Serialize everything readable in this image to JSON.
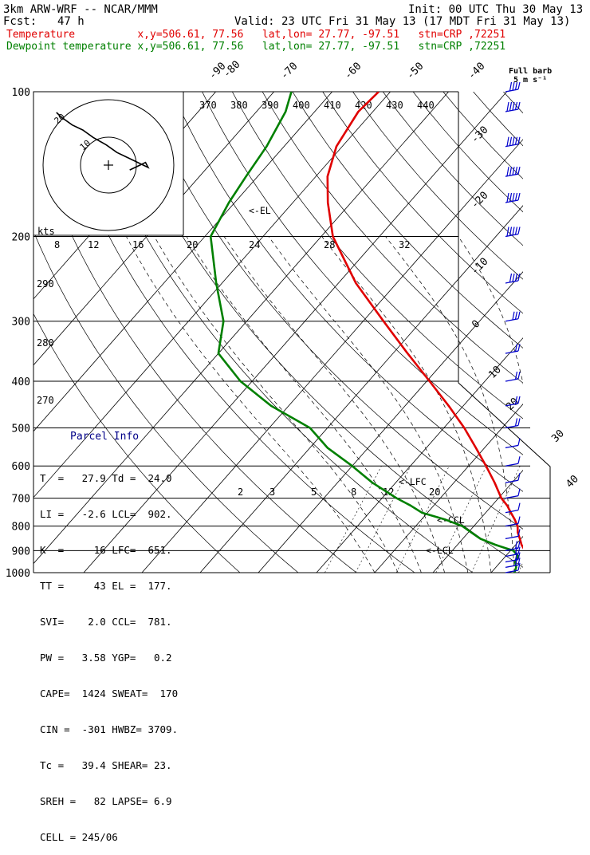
{
  "header": {
    "model": "3km ARW-WRF -- NCAR/MMM",
    "init": "Init: 00 UTC Thu 30 May 13",
    "fcst_label": "Fcst:",
    "fcst_value": "47 h",
    "valid": "Valid: 23 UTC Fri 31 May 13 (17 MDT Fri 31 May 13)",
    "line_temp": "Temperature          x,y=506.61, 77.56   lat,lon= 27.77, -97.51   stn=CRP ,72251",
    "line_dew": "Dewpoint temperature x,y=506.61, 77.56   lat,lon= 27.77, -97.51   stn=CRP ,72251",
    "full_barb": "Full barb",
    "barb_units": "5 m s⁻¹"
  },
  "colors": {
    "temperature": "#e00000",
    "dewpoint": "#008000",
    "info_title": "#000088"
  },
  "parcel_info": {
    "title": "Parcel Info",
    "rows": [
      "T  =   27.9 Td =  24.0",
      "LI =   -2.6 LCL=  902.",
      "K  =     16 LFC=  651.",
      "TT =     43 EL =  177.",
      "SVI=    2.0 CCL=  781.",
      "PW =   3.58 YGP=   0.2",
      "CAPE=  1424 SWEAT=  170",
      "CIN =  -301 HWBZ= 3709.",
      "Tc =   39.4 SHEAR= 23.",
      "SREH =   82 LAPSE= 6.9",
      "CELL = 245/06"
    ]
  },
  "hodograph": {
    "units_label": "kts",
    "rings": [
      "10",
      "20"
    ]
  },
  "level_labels": {
    "lfc": "<-LFC",
    "ccl": "<-CCL",
    "lcl": "<-LCL",
    "el": "<-EL"
  },
  "chart_data": {
    "type": "line",
    "title": "",
    "yscale": "log",
    "ylim": [
      1000,
      100
    ],
    "pressure_ticks": [
      100,
      200,
      300,
      400,
      500,
      600,
      700,
      800,
      900,
      1000
    ],
    "isotherm_labels": [
      "-90",
      "-80",
      "-70",
      "-60",
      "-50",
      "-40",
      "-30",
      "-20",
      "-10",
      "0",
      "10",
      "20",
      "30",
      "40"
    ],
    "theta_labels": [
      "370",
      "380",
      "390",
      "400",
      "410",
      "420",
      "430",
      "440"
    ],
    "theta_lower_labels": [
      "290",
      "280",
      "270"
    ],
    "mixing_ratio_upper": [
      "8",
      "12",
      "16",
      "20",
      "24",
      "28",
      "32"
    ],
    "mixing_ratio_lower": [
      "2",
      "3",
      "5",
      "8",
      "12",
      "20"
    ],
    "series": [
      {
        "name": "Temperature",
        "pressure": [
          1000,
          975,
          950,
          925,
          900,
          875,
          850,
          825,
          800,
          775,
          750,
          725,
          700,
          650,
          600,
          550,
          500,
          450,
          400,
          350,
          300,
          250,
          200,
          170,
          150,
          130,
          110,
          100
        ],
        "temperature": [
          27.9,
          27.2,
          25.8,
          24.0,
          22.5,
          21.0,
          19.8,
          18.5,
          17.5,
          16.0,
          14.3,
          12.6,
          10.5,
          7.0,
          3.0,
          -1.5,
          -6.5,
          -12.5,
          -19.5,
          -27.5,
          -36.5,
          -47.0,
          -58.0,
          -64.0,
          -68.0,
          -71.0,
          -72.5,
          -72.0
        ]
      },
      {
        "name": "Dewpoint temperature",
        "pressure": [
          1000,
          975,
          950,
          925,
          900,
          875,
          850,
          825,
          800,
          775,
          750,
          725,
          700,
          650,
          600,
          550,
          500,
          450,
          400,
          350,
          300,
          250,
          200,
          170,
          150,
          130,
          110,
          100
        ],
        "temperature": [
          24.0,
          23.5,
          22.5,
          22.2,
          20.5,
          16.5,
          13.0,
          10.5,
          8.0,
          4.0,
          -1.0,
          -4.0,
          -7.5,
          -14.0,
          -20.0,
          -27.0,
          -33.0,
          -43.0,
          -52.0,
          -60.0,
          -64.0,
          -71.0,
          -79.0,
          -81.0,
          -82.0,
          -83.0,
          -85.0,
          -87.0
        ]
      }
    ],
    "wind_barbs": {
      "pressure": [
        1000,
        975,
        950,
        925,
        900,
        850,
        800,
        750,
        700,
        650,
        600,
        550,
        500,
        450,
        400,
        350,
        300,
        250,
        200,
        170,
        150,
        130,
        110,
        100
      ],
      "speed_ms": [
        5,
        10,
        10,
        10,
        10,
        5,
        5,
        5,
        5,
        5,
        5,
        5,
        10,
        10,
        10,
        10,
        15,
        20,
        25,
        25,
        25,
        25,
        25,
        20
      ]
    },
    "hodograph_trace_kts": {
      "u": [
        -1,
        1,
        3,
        5,
        6,
        3,
        -1,
        -5,
        -10,
        -14,
        -18,
        -22,
        -24
      ],
      "v": [
        -1,
        0,
        1,
        2,
        0,
        4,
        6,
        9,
        12,
        15,
        17,
        20,
        22
      ]
    }
  }
}
